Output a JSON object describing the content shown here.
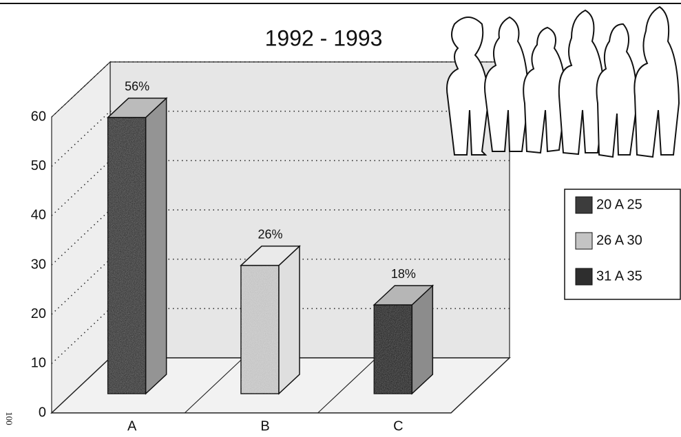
{
  "chart_data": {
    "type": "bar3d",
    "title": "1992 - 1993",
    "categories": [
      "A",
      "B",
      "C"
    ],
    "series": [
      {
        "name": "20 A 25",
        "color": "#3c3c3c",
        "values": [
          56,
          null,
          null
        ],
        "value_labels": [
          "56%",
          null,
          null
        ]
      },
      {
        "name": "26 A 30",
        "color": "#c4c4c4",
        "values": [
          null,
          26,
          null
        ],
        "value_labels": [
          null,
          "26%",
          null
        ]
      },
      {
        "name": "31 A 35",
        "color": "#2e2e2e",
        "values": [
          null,
          null,
          18
        ],
        "value_labels": [
          null,
          null,
          "18%"
        ]
      }
    ],
    "ylim": [
      0,
      60
    ],
    "yticks": [
      0,
      10,
      20,
      30,
      40,
      50,
      60
    ],
    "grid": true
  },
  "page_number": "100"
}
